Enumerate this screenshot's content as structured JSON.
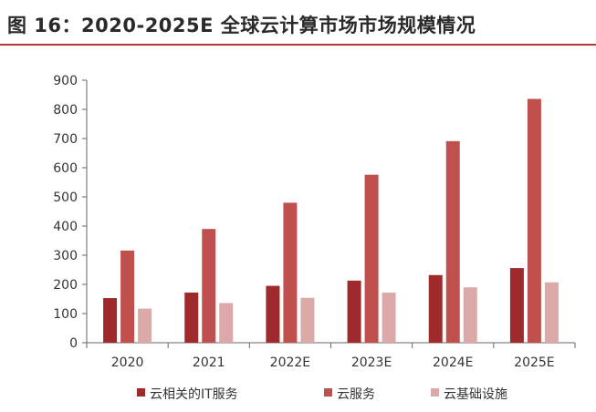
{
  "header": {
    "title": "图 16：2020-2025E 全球云计算市场市场规模情况"
  },
  "colors": {
    "rule": "#b23a3a"
  },
  "chart_data": {
    "type": "bar",
    "title": "",
    "xlabel": "",
    "ylabel": "",
    "categories": [
      "2020",
      "2021",
      "2022E",
      "2023E",
      "2024E",
      "2025E"
    ],
    "ylim": [
      0,
      900
    ],
    "yticks": [
      0,
      100,
      200,
      300,
      400,
      500,
      600,
      700,
      800,
      900
    ],
    "grid": false,
    "legend_position": "bottom",
    "series": [
      {
        "name": "云相关的IT服务",
        "color": "#9e2a2b",
        "values": [
          153,
          172,
          195,
          213,
          232,
          256
        ]
      },
      {
        "name": "云服务",
        "color": "#c0504d",
        "values": [
          316,
          390,
          480,
          576,
          691,
          836
        ]
      },
      {
        "name": "云基础设施",
        "color": "#dba9a8",
        "values": [
          117,
          136,
          154,
          172,
          190,
          207
        ]
      }
    ]
  }
}
